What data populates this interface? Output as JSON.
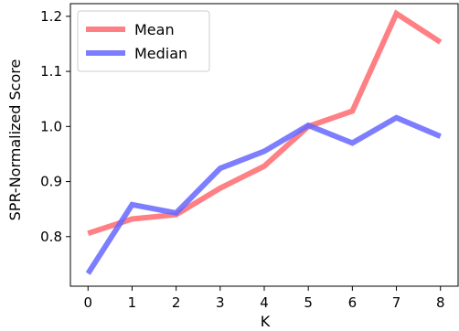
{
  "chart_data": {
    "type": "line",
    "title": "",
    "xlabel": "K",
    "ylabel": "SPR-Normalized Score",
    "x": [
      0,
      1,
      2,
      3,
      4,
      5,
      6,
      7,
      8
    ],
    "x_ticks": [
      "0",
      "1",
      "2",
      "3",
      "4",
      "5",
      "6",
      "7",
      "8"
    ],
    "xlim": [
      -0.4,
      8.4
    ],
    "y_ticks": [
      "0.8",
      "0.9",
      "1.0",
      "1.1",
      "1.2"
    ],
    "ylim": [
      0.71,
      1.223
    ],
    "grid": false,
    "legend_position": "top-left",
    "series": [
      {
        "name": "Mean",
        "color": "#ff6a6f",
        "opacity": 0.85,
        "values": [
          0.806,
          0.832,
          0.84,
          0.888,
          0.928,
          1.0,
          1.028,
          1.205,
          1.153
        ]
      },
      {
        "name": "Median",
        "color": "#6666ff",
        "opacity": 0.85,
        "values": [
          0.733,
          0.858,
          0.843,
          0.924,
          0.955,
          1.002,
          0.97,
          1.016,
          0.982
        ]
      }
    ]
  }
}
